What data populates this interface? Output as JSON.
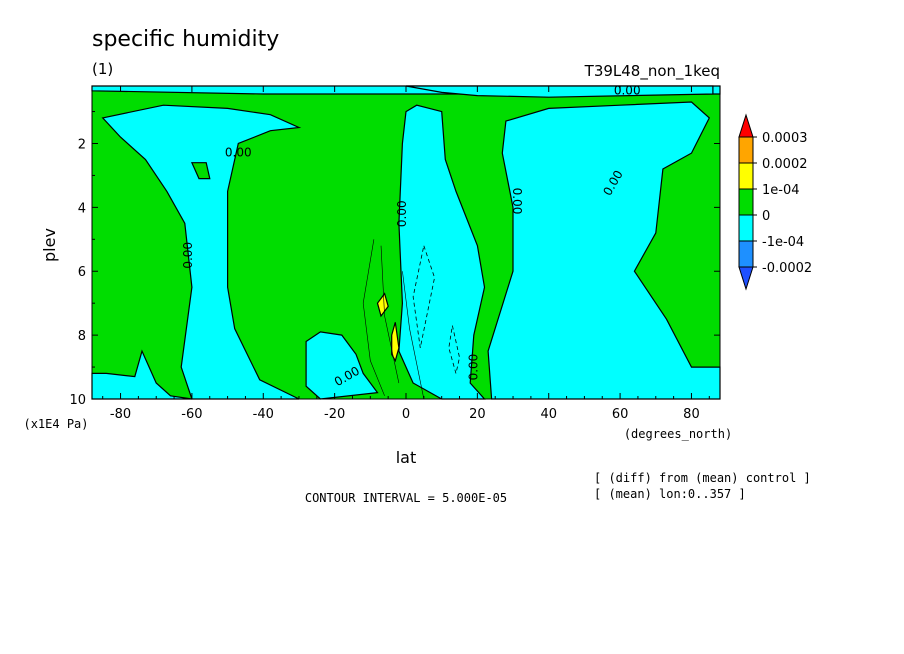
{
  "colors": {
    "pos3": "#ff0000",
    "pos2": "#ffa500",
    "pos1": "#ffff00",
    "zero": "#00dd00",
    "neg1": "#00ffff",
    "neg2": "#1e90ff",
    "line": "#000000"
  },
  "chart_data": {
    "type": "contour",
    "title": "specific humidity",
    "panel_label": "(1)",
    "experiment": "T39L48_non_1keq",
    "xlabel": "lat",
    "xunits": "(degrees_north)",
    "ylabel": "plev",
    "yunits": "(x1E4 Pa)",
    "xlim": [
      -88,
      88
    ],
    "ylim": [
      10,
      0.2
    ],
    "x_ticks": [
      -80,
      -60,
      -40,
      -20,
      0,
      20,
      40,
      60,
      80
    ],
    "y_ticks": [
      2,
      4,
      6,
      8,
      10
    ],
    "contour_interval_text": "CONTOUR INTERVAL = 5.000E-05",
    "contour_labels": [
      "0.00",
      "0.00",
      "0.00",
      "0.00",
      "0.00",
      "0.00",
      "0.00",
      "0.00"
    ],
    "annotations": [
      "[ (diff) from (mean) control ]",
      "[ (mean) lon:0..357 ]"
    ],
    "legend": {
      "position": "right",
      "labels": [
        "0.0003",
        "0.0002",
        "1e-04",
        "0",
        "-1e-04",
        "-0.0002"
      ],
      "bins": [
        {
          "color_key": "pos3",
          "range": [
            0.0003,
            null
          ]
        },
        {
          "color_key": "pos2",
          "range": [
            0.0002,
            0.0003
          ]
        },
        {
          "color_key": "pos1",
          "range": [
            0.0001,
            0.0002
          ]
        },
        {
          "color_key": "zero",
          "range": [
            0,
            0.0001
          ]
        },
        {
          "color_key": "neg1",
          "range": [
            -0.0001,
            0
          ]
        },
        {
          "color_key": "neg2",
          "range": [
            -0.0002,
            -0.0001
          ]
        },
        {
          "color_key": "neg3",
          "range": [
            null,
            -0.0002
          ]
        }
      ]
    },
    "regions": [
      {
        "name": "top-strip-neg",
        "level": "neg1",
        "points": [
          [
            -88,
            0.2
          ],
          [
            88,
            0.2
          ],
          [
            88,
            0.45
          ],
          [
            -40,
            0.45
          ],
          [
            -88,
            0.35
          ]
        ]
      },
      {
        "name": "top-right-pocket",
        "level": "neg1",
        "points": [
          [
            0,
            0.2
          ],
          [
            86,
            0.2
          ],
          [
            86,
            0.45
          ],
          [
            40,
            0.55
          ],
          [
            20,
            0.5
          ],
          [
            10,
            0.4
          ]
        ]
      },
      {
        "name": "sh-polar-neg",
        "level": "neg1",
        "points": [
          [
            -88,
            10
          ],
          [
            -88,
            9.2
          ],
          [
            -84,
            9.2
          ],
          [
            -76,
            9.3
          ],
          [
            -74,
            8.5
          ],
          [
            -70,
            9.5
          ],
          [
            -66,
            9.9
          ],
          [
            -60,
            10
          ]
        ]
      },
      {
        "name": "sh-midlat-neg",
        "level": "neg1",
        "points": [
          [
            -85,
            1.2
          ],
          [
            -68,
            0.8
          ],
          [
            -50,
            0.9
          ],
          [
            -38,
            1.1
          ],
          [
            -30,
            1.5
          ],
          [
            -38,
            1.6
          ],
          [
            -47,
            2.0
          ],
          [
            -50,
            3.5
          ],
          [
            -50,
            6.5
          ],
          [
            -48,
            7.8
          ],
          [
            -41,
            9.4
          ],
          [
            -30,
            10
          ],
          [
            -60,
            10
          ],
          [
            -63,
            9.0
          ],
          [
            -60,
            6.5
          ],
          [
            -62,
            4.5
          ],
          [
            -67,
            3.5
          ],
          [
            -73,
            2.5
          ],
          [
            -80,
            1.8
          ]
        ]
      },
      {
        "name": "equatorial-neg",
        "level": "neg1",
        "points": [
          [
            0,
            1.0
          ],
          [
            3,
            0.8
          ],
          [
            10,
            1.0
          ],
          [
            11,
            2.5
          ],
          [
            14,
            3.5
          ],
          [
            20,
            5.2
          ],
          [
            22,
            6.5
          ],
          [
            19,
            8.0
          ],
          [
            18,
            9.5
          ],
          [
            22,
            10
          ],
          [
            10,
            10
          ],
          [
            2,
            9.5
          ],
          [
            -2,
            8.5
          ],
          [
            -1,
            7.0
          ],
          [
            -2,
            4.5
          ],
          [
            -1,
            2.0
          ]
        ]
      },
      {
        "name": "sh-subtrop-neg",
        "level": "neg1",
        "points": [
          [
            -28,
            8.2
          ],
          [
            -24,
            7.9
          ],
          [
            -18,
            8.0
          ],
          [
            -14,
            8.6
          ],
          [
            -12,
            9.2
          ],
          [
            -8,
            9.8
          ],
          [
            -24,
            10
          ],
          [
            -28,
            9.6
          ]
        ]
      },
      {
        "name": "nh-wide-neg",
        "level": "neg1",
        "points": [
          [
            28,
            1.3
          ],
          [
            40,
            0.9
          ],
          [
            60,
            0.8
          ],
          [
            80,
            0.7
          ],
          [
            85,
            1.2
          ],
          [
            80,
            2.3
          ],
          [
            72,
            2.8
          ],
          [
            70,
            4.8
          ],
          [
            64,
            6.0
          ],
          [
            73,
            7.5
          ],
          [
            80,
            9.0
          ],
          [
            88,
            9.0
          ],
          [
            88,
            10
          ],
          [
            24,
            10
          ],
          [
            23,
            8.5
          ],
          [
            30,
            6.0
          ],
          [
            30,
            4.0
          ],
          [
            27,
            2.3
          ]
        ]
      },
      {
        "name": "yellow-blob-1",
        "level": "pos1",
        "points": [
          [
            -8,
            7.0
          ],
          [
            -6,
            6.7
          ],
          [
            -5,
            7.1
          ],
          [
            -7,
            7.4
          ]
        ]
      },
      {
        "name": "yellow-blob-2",
        "level": "pos1",
        "points": [
          [
            -4,
            8.0
          ],
          [
            -3,
            7.6
          ],
          [
            -2,
            8.4
          ],
          [
            -3,
            8.8
          ],
          [
            -4,
            8.6
          ]
        ]
      },
      {
        "name": "green-speck",
        "level": "zero",
        "points": [
          [
            -60,
            2.6
          ],
          [
            -56,
            2.6
          ],
          [
            -55,
            3.1
          ],
          [
            -58,
            3.1
          ]
        ]
      }
    ]
  }
}
